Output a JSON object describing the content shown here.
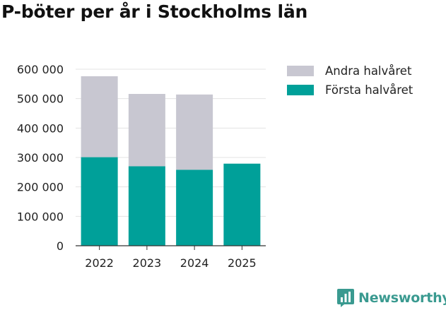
{
  "title": "P-böter per år i Stockholms län",
  "brand": {
    "name": "Newsworthy",
    "icon": "bar-chart-badge-icon",
    "color": "#3a9a90"
  },
  "chart_data": {
    "type": "bar",
    "stacked": true,
    "categories": [
      "2022",
      "2023",
      "2024",
      "2025"
    ],
    "series": [
      {
        "name": "Första halvåret",
        "color": "#00a099",
        "values": [
          301000,
          270000,
          258000,
          279000
        ]
      },
      {
        "name": "Andra halvåret",
        "color": "#c8c7d1",
        "values": [
          275000,
          246000,
          256000,
          0
        ]
      }
    ],
    "legend_order": [
      1,
      0
    ],
    "legend_position": "right",
    "ylim": [
      0,
      600000
    ],
    "yticks": [
      0,
      100000,
      200000,
      300000,
      400000,
      500000,
      600000
    ],
    "ytick_labels": [
      "0",
      "100 000",
      "200 000",
      "300 000",
      "400 000",
      "500 000",
      "600 000"
    ],
    "grid": true,
    "xlabel": "",
    "ylabel": ""
  }
}
